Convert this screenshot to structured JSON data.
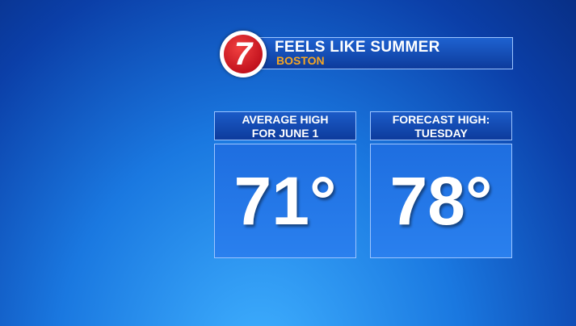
{
  "header": {
    "logo": "7",
    "title": "FEELS LIKE SUMMER",
    "subtitle": "BOSTON"
  },
  "panels": [
    {
      "label_lines": [
        "AVERAGE HIGH",
        "FOR JUNE 1"
      ],
      "value": "71°"
    },
    {
      "label_lines": [
        "FORECAST HIGH:",
        "TUESDAY"
      ],
      "value": "78°"
    }
  ]
}
